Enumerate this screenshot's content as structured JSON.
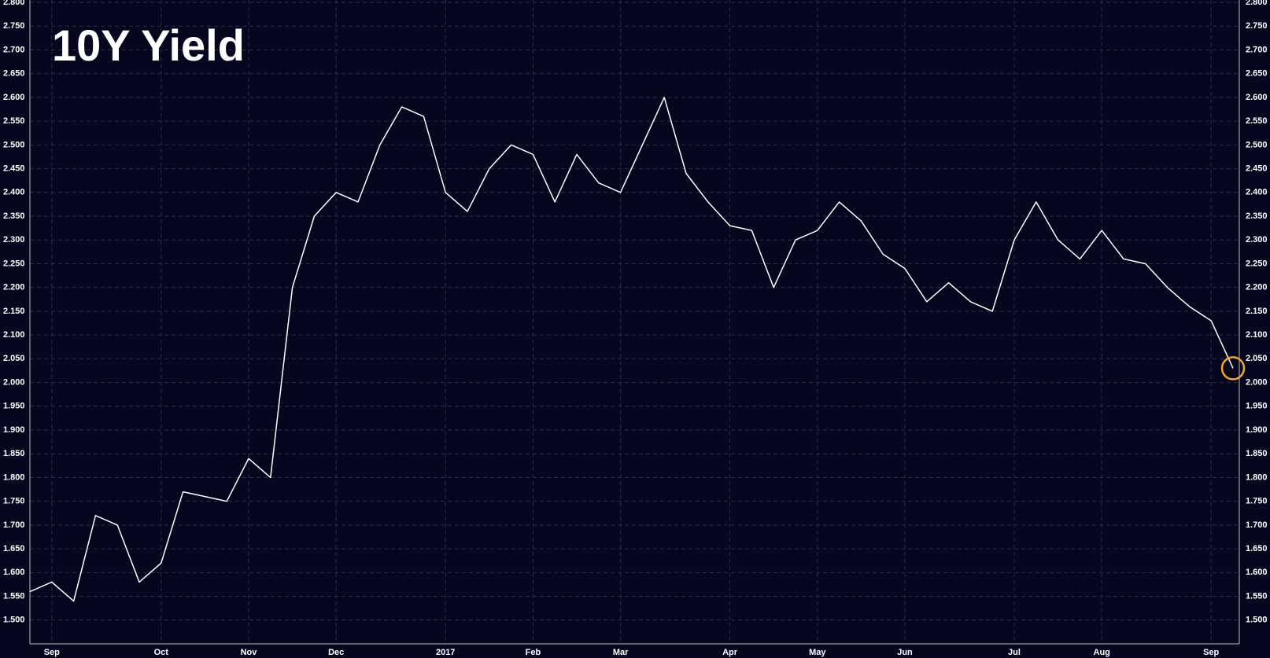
{
  "chart_data": {
    "type": "line",
    "title": "10Y Yield",
    "background": "#07061f",
    "grid": true,
    "highlight_color": "#f5a623",
    "categories": [
      null,
      "Sep",
      null,
      null,
      null,
      null,
      "Oct",
      null,
      null,
      null,
      "Nov",
      null,
      null,
      null,
      "Dec",
      null,
      null,
      null,
      null,
      "2017",
      null,
      null,
      null,
      "Feb",
      null,
      null,
      null,
      "Mar",
      null,
      null,
      null,
      null,
      "Apr",
      null,
      null,
      null,
      "May",
      null,
      null,
      null,
      "Jun",
      null,
      null,
      null,
      null,
      "Jul",
      null,
      null,
      null,
      "Aug",
      null,
      null,
      null,
      null,
      "Sep",
      null
    ],
    "series": [
      {
        "name": "10Y Yield",
        "color": "#ffffff",
        "values": [
          1.56,
          1.58,
          1.54,
          1.72,
          1.7,
          1.58,
          1.62,
          1.77,
          1.76,
          1.75,
          1.84,
          1.8,
          2.2,
          2.35,
          2.4,
          2.38,
          2.5,
          2.58,
          2.56,
          2.4,
          2.36,
          2.45,
          2.5,
          2.48,
          2.38,
          2.48,
          2.42,
          2.4,
          2.5,
          2.6,
          2.44,
          2.38,
          2.33,
          2.32,
          2.2,
          2.3,
          2.32,
          2.38,
          2.34,
          2.27,
          2.24,
          2.17,
          2.21,
          2.17,
          2.15,
          2.3,
          2.38,
          2.3,
          2.26,
          2.32,
          2.26,
          2.25,
          2.2,
          2.16,
          2.13,
          2.03
        ]
      }
    ],
    "ylim": [
      1.45,
      2.805
    ],
    "yticks": [
      {
        "value": 1.5,
        "label": "1.500"
      },
      {
        "value": 1.55,
        "label": "1.550"
      },
      {
        "value": 1.6,
        "label": "1.600"
      },
      {
        "value": 1.65,
        "label": "1.650"
      },
      {
        "value": 1.7,
        "label": "1.700"
      },
      {
        "value": 1.75,
        "label": "1.750"
      },
      {
        "value": 1.8,
        "label": "1.800"
      },
      {
        "value": 1.85,
        "label": "1.850"
      },
      {
        "value": 1.9,
        "label": "1.900"
      },
      {
        "value": 1.95,
        "label": "1.950"
      },
      {
        "value": 2.0,
        "label": "2.000"
      },
      {
        "value": 2.05,
        "label": "2.050"
      },
      {
        "value": 2.1,
        "label": "2.100"
      },
      {
        "value": 2.15,
        "label": "2.150"
      },
      {
        "value": 2.2,
        "label": "2.200"
      },
      {
        "value": 2.25,
        "label": "2.250"
      },
      {
        "value": 2.3,
        "label": "2.300"
      },
      {
        "value": 2.35,
        "label": "2.350"
      },
      {
        "value": 2.4,
        "label": "2.400"
      },
      {
        "value": 2.45,
        "label": "2.450"
      },
      {
        "value": 2.5,
        "label": "2.500"
      },
      {
        "value": 2.55,
        "label": "2.550"
      },
      {
        "value": 2.6,
        "label": "2.600"
      },
      {
        "value": 2.65,
        "label": "2.650"
      },
      {
        "value": 2.7,
        "label": "2.700"
      },
      {
        "value": 2.75,
        "label": "2.750"
      },
      {
        "value": 2.8,
        "label": "2.800"
      }
    ]
  }
}
